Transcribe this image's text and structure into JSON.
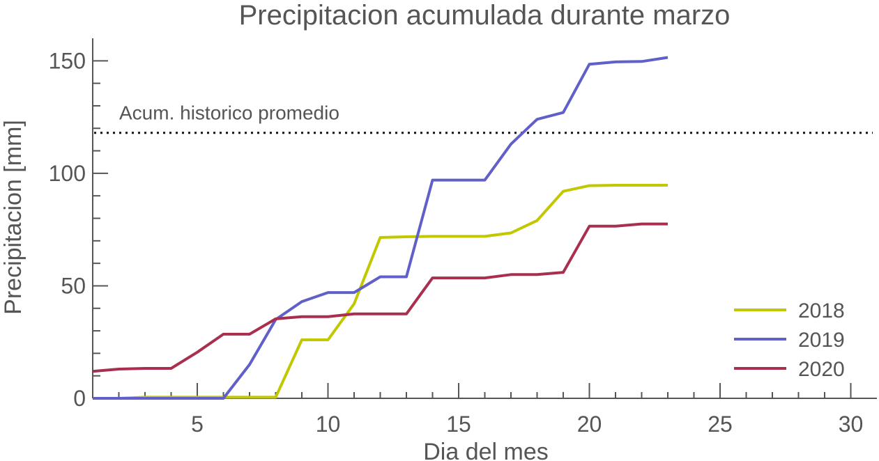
{
  "chart_data": {
    "type": "line",
    "title": "Precipitacion acumulada durante marzo",
    "xlabel": "Dia del mes",
    "ylabel": "Precipitacion [mm]",
    "xlim": [
      1,
      31
    ],
    "ylim": [
      0,
      160
    ],
    "xticks": [
      5,
      10,
      15,
      20,
      25,
      30
    ],
    "yticks": [
      0,
      50,
      100,
      150
    ],
    "grid": false,
    "legend_position": "bottom-right",
    "annotations": [
      {
        "text": "Acum. historico promedio",
        "y": 118
      }
    ],
    "series": [
      {
        "name": "2018",
        "color": "#c2c800",
        "x": [
          1,
          2,
          3,
          4,
          5,
          6,
          7,
          8,
          9,
          10,
          11,
          12,
          13,
          14,
          15,
          16,
          17,
          18,
          19,
          20,
          21,
          22,
          23
        ],
        "y": [
          0,
          0,
          0.5,
          0.5,
          0.5,
          0.5,
          0.5,
          0.5,
          26,
          26,
          42,
          71.5,
          71.8,
          72,
          72,
          72,
          73.5,
          79,
          92,
          94.5,
          94.7,
          94.7,
          94.7
        ]
      },
      {
        "name": "2019",
        "color": "#6060c8",
        "x": [
          1,
          2,
          3,
          4,
          5,
          6,
          7,
          8,
          9,
          10,
          11,
          12,
          13,
          14,
          15,
          16,
          17,
          18,
          19,
          20,
          21,
          22,
          23
        ],
        "y": [
          0,
          0,
          0,
          0,
          0,
          0,
          15,
          35,
          43,
          47,
          47,
          54,
          54,
          97,
          97,
          97,
          113,
          124,
          127,
          148.5,
          149.5,
          149.7,
          151.5
        ]
      },
      {
        "name": "2020",
        "color": "#a8304e",
        "x": [
          1,
          2,
          3,
          4,
          5,
          6,
          7,
          8,
          9,
          10,
          11,
          12,
          13,
          14,
          15,
          16,
          17,
          18,
          19,
          20,
          21,
          22,
          23
        ],
        "y": [
          12,
          13,
          13.3,
          13.3,
          20.5,
          28.5,
          28.5,
          35.3,
          36.3,
          36.3,
          37.5,
          37.5,
          37.5,
          53.5,
          53.5,
          53.5,
          55,
          55,
          56,
          76.5,
          76.5,
          77.5,
          77.5
        ]
      }
    ]
  }
}
